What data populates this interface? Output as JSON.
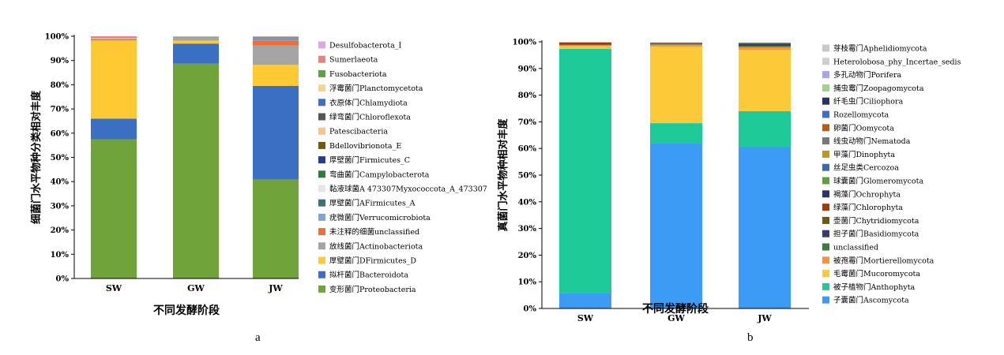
{
  "chart_data": [
    {
      "type": "bar",
      "stacked": true,
      "panel_label": "a",
      "xlabel": "不同发酵阶段",
      "ylabel": "细菌门水平物种分类相对丰度",
      "categories": [
        "SW",
        "GW",
        "JW"
      ],
      "ylim": [
        0,
        100
      ],
      "yticks": [
        "0%",
        "10%",
        "20%",
        "30%",
        "40%",
        "50%",
        "60%",
        "70%",
        "80%",
        "90%",
        "100%"
      ],
      "legend_position": "right",
      "series": [
        {
          "name": "变形菌门Proteobacteria",
          "color": "#70A33A",
          "values": [
            57.5,
            88.7,
            40.8
          ]
        },
        {
          "name": "拟杆菌门Bacteroidota",
          "color": "#3A6FC4",
          "values": [
            8.5,
            8.3,
            38.7
          ]
        },
        {
          "name": "厚壁菌门DFirmicutes_D",
          "color": "#FFC933",
          "values": [
            32.2,
            1.2,
            8.7
          ]
        },
        {
          "name": "放线菌门Actinobacteriota",
          "color": "#A5A5A5",
          "values": [
            0.3,
            1.2,
            8.0
          ]
        },
        {
          "name": "未注释的细菌unclassified",
          "color": "#F06F36",
          "values": [
            0.4,
            0.3,
            2.0
          ]
        },
        {
          "name": "疣微菌门Verrucomicrobiota",
          "color": "#7BA7DB",
          "values": [
            0.1,
            0.1,
            0.6
          ]
        },
        {
          "name": "厚壁菌门AFirmicutes_A",
          "color": "#3E7273",
          "values": [
            0.1,
            0.1,
            0.4
          ]
        },
        {
          "name": "黏液球菌A 473307Myxococcota_A_473307",
          "color": "#E6E6E6",
          "values": [
            0.1,
            0.0,
            0.2
          ]
        },
        {
          "name": "弯曲菌门Campylobacterota",
          "color": "#2E7D3A",
          "values": [
            0.0,
            0.0,
            0.1
          ]
        },
        {
          "name": "厚壁菌门Firmicutes_C",
          "color": "#283C8C",
          "values": [
            0.0,
            0.0,
            0.1
          ]
        },
        {
          "name": "Bdellovibrionota_E",
          "color": "#6B5A12",
          "values": [
            0.0,
            0.0,
            0.1
          ]
        },
        {
          "name": "Patescibacteria",
          "color": "#F6C48E",
          "values": [
            0.2,
            0.0,
            0.1
          ]
        },
        {
          "name": "绿弯菌门Chloroflexota",
          "color": "#555555",
          "values": [
            0.1,
            0.0,
            0.0
          ]
        },
        {
          "name": "衣原体门Chlamydiota",
          "color": "#3D6EBF",
          "values": [
            0.0,
            0.0,
            0.1
          ]
        },
        {
          "name": "浮霉菌门Planctomycetota",
          "color": "#F8D588",
          "values": [
            0.0,
            0.1,
            0.0
          ]
        },
        {
          "name": "Fusobacteriota",
          "color": "#5CA23D",
          "values": [
            0.0,
            0.0,
            0.0
          ]
        },
        {
          "name": "Sumerlaeota",
          "color": "#F08080",
          "values": [
            0.5,
            0.0,
            0.1
          ]
        },
        {
          "name": "Desulfobacterota_I",
          "color": "#E0A6E6",
          "values": [
            0.0,
            0.0,
            0.0
          ]
        }
      ]
    },
    {
      "type": "bar",
      "stacked": true,
      "panel_label": "b",
      "xlabel": "不同发酵阶段",
      "ylabel": "真菌门水平物种相对丰度",
      "categories": [
        "SW",
        "GW",
        "JW"
      ],
      "ylim": [
        0,
        100
      ],
      "yticks": [
        "0%",
        "10%",
        "20%",
        "30%",
        "40%",
        "50%",
        "60%",
        "70%",
        "80%",
        "90%",
        "100%"
      ],
      "legend_position": "right",
      "series": [
        {
          "name": "子囊菌门Ascomycota",
          "color": "#3C9CF5",
          "values": [
            5.8,
            62.0,
            60.5
          ]
        },
        {
          "name": "被子植物门Anthophyta",
          "color": "#1ECB98",
          "values": [
            91.6,
            7.5,
            13.5
          ]
        },
        {
          "name": "毛霉菌门Mucoromycota",
          "color": "#FCC938",
          "values": [
            1.0,
            28.7,
            23.0
          ]
        },
        {
          "name": "被孢霉门Mortierellomycota",
          "color": "#F7943B",
          "values": [
            0.3,
            0.7,
            1.0
          ]
        },
        {
          "name": "unclassified",
          "color": "#3C7A3F",
          "values": [
            0.1,
            0.3,
            0.5
          ]
        },
        {
          "name": "担子菌门Basidiomycota",
          "color": "#343E6E",
          "values": [
            0.1,
            0.1,
            0.8
          ]
        },
        {
          "name": "壶菌门Chytridiomycota",
          "color": "#6B5A10",
          "values": [
            0.0,
            0.1,
            0.0
          ]
        },
        {
          "name": "绿藻门Chlorophyta",
          "color": "#9E3C10",
          "values": [
            0.9,
            0.2,
            0.2
          ]
        },
        {
          "name": "褐藻门Ochrophyta",
          "color": "#283470",
          "values": [
            0.0,
            0.1,
            0.1
          ]
        },
        {
          "name": "球囊菌门Glomeromycota",
          "color": "#5CA23D",
          "values": [
            0.0,
            0.0,
            0.1
          ]
        },
        {
          "name": "丝足虫类Cercozoa",
          "color": "#3A6CA8",
          "values": [
            0.0,
            0.0,
            0.0
          ]
        },
        {
          "name": "甲藻门Dinophyta",
          "color": "#BF9A10",
          "values": [
            0.0,
            0.0,
            0.0
          ]
        },
        {
          "name": "线虫动物门Nematoda",
          "color": "#777777",
          "values": [
            0.0,
            0.0,
            0.0
          ]
        },
        {
          "name": "卵菌门Oomycota",
          "color": "#C05A10",
          "values": [
            0.0,
            0.0,
            0.0
          ]
        },
        {
          "name": "Rozellomycota",
          "color": "#3A72C8",
          "values": [
            0.0,
            0.0,
            0.0
          ]
        },
        {
          "name": "纤毛虫门Ciliophora",
          "color": "#2A3260",
          "values": [
            0.0,
            0.0,
            0.0
          ]
        },
        {
          "name": "捕虫霉门Zoopagomycota",
          "color": "#9FD48A",
          "values": [
            0.0,
            0.0,
            0.0
          ]
        },
        {
          "name": "多孔动物门Porifera",
          "color": "#A8A6E6",
          "values": [
            0.0,
            0.0,
            0.0
          ]
        },
        {
          "name": "Heterolobosa_phy_Incertae_sedis",
          "color": "#CFCFCF",
          "values": [
            0.0,
            0.0,
            0.0
          ]
        },
        {
          "name": "芽枝霉门Aphelidiomycota",
          "color": "#C8C8C8",
          "values": [
            0.0,
            0.0,
            0.0
          ]
        }
      ]
    }
  ]
}
